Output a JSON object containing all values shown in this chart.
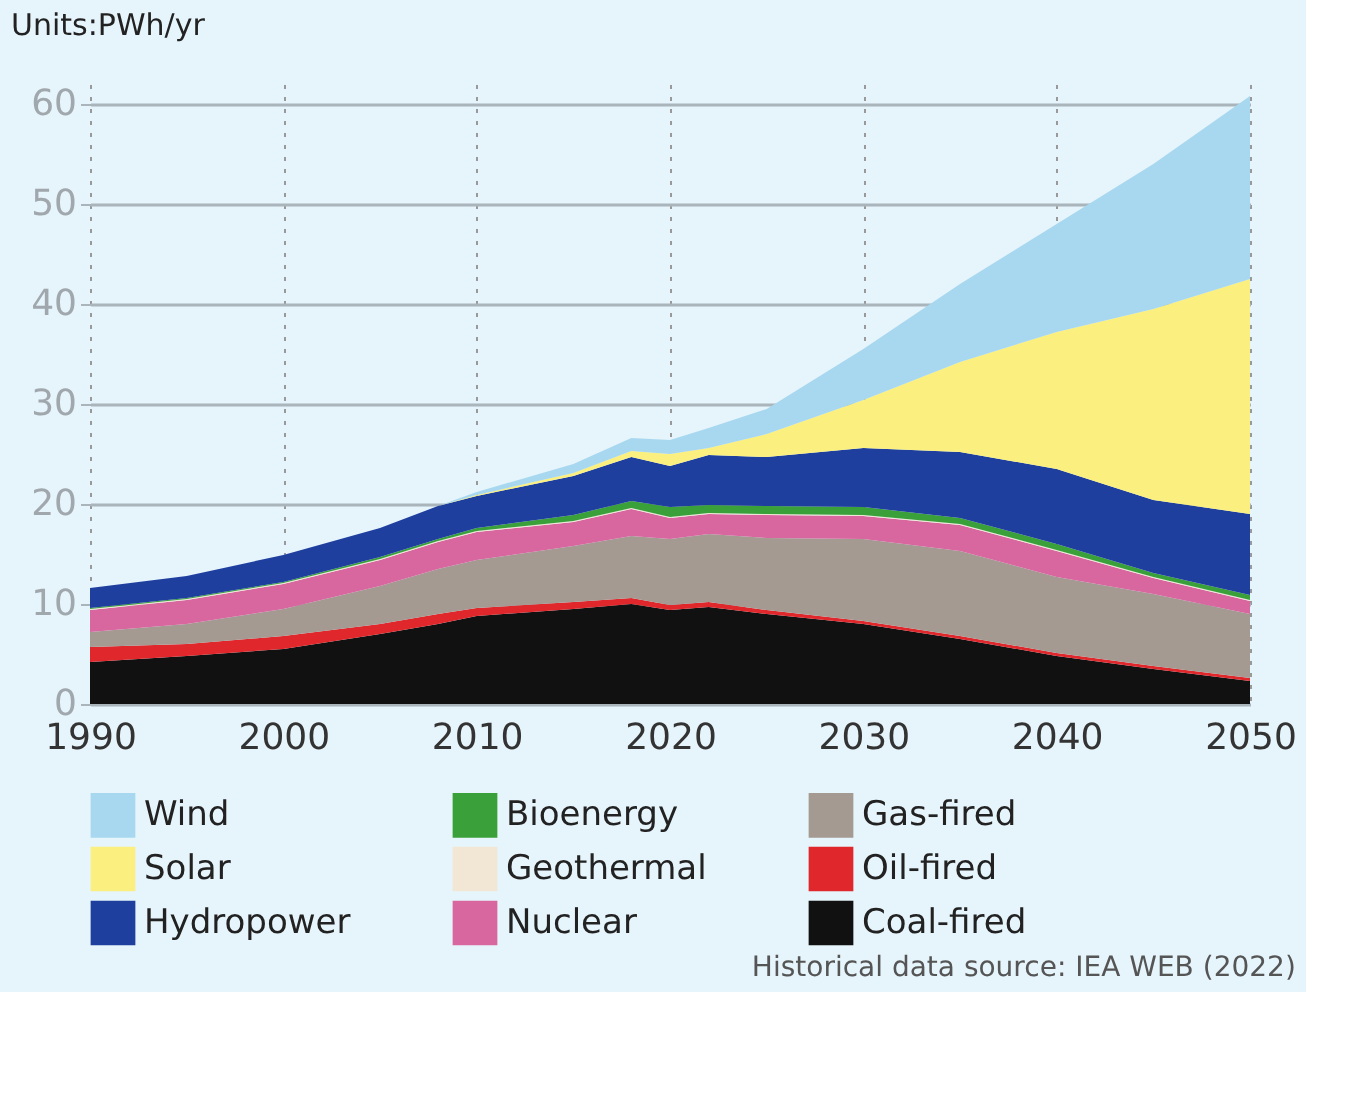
{
  "chart_data": {
    "type": "area",
    "stacked": true,
    "ylabel": "Units:PWh/yr",
    "x": [
      1990,
      1995,
      2000,
      2005,
      2008,
      2010,
      2015,
      2018,
      2020,
      2022,
      2025,
      2030,
      2035,
      2040,
      2045,
      2050
    ],
    "series": [
      {
        "name": "Coal-fired",
        "color": "#111111",
        "values": [
          4.2,
          4.8,
          5.5,
          7.0,
          8.0,
          8.8,
          9.5,
          10.0,
          9.4,
          9.7,
          9.0,
          8.0,
          6.5,
          4.8,
          3.5,
          2.3
        ]
      },
      {
        "name": "Oil-fired",
        "color": "#e0282c",
        "values": [
          1.5,
          1.2,
          1.3,
          1.0,
          1.0,
          0.8,
          0.7,
          0.6,
          0.5,
          0.5,
          0.4,
          0.3,
          0.3,
          0.3,
          0.3,
          0.3
        ]
      },
      {
        "name": "Gas-fired",
        "color": "#a59a92",
        "values": [
          1.5,
          2.0,
          2.7,
          3.8,
          4.5,
          4.8,
          5.6,
          6.2,
          6.6,
          6.8,
          7.2,
          8.2,
          8.5,
          7.6,
          7.2,
          6.4
        ]
      },
      {
        "name": "Nuclear",
        "color": "#d9679f",
        "values": [
          2.2,
          2.4,
          2.5,
          2.6,
          2.7,
          2.8,
          2.4,
          2.7,
          2.1,
          2.0,
          2.3,
          2.3,
          2.6,
          2.6,
          1.6,
          1.3
        ]
      },
      {
        "name": "Geothermal",
        "color": "#f2e6d4",
        "values": [
          0.1,
          0.1,
          0.1,
          0.1,
          0.1,
          0.1,
          0.1,
          0.1,
          0.1,
          0.1,
          0.1,
          0.1,
          0.1,
          0.1,
          0.1,
          0.1
        ]
      },
      {
        "name": "Bioenergy",
        "color": "#3aa03a",
        "values": [
          0.1,
          0.1,
          0.1,
          0.2,
          0.2,
          0.3,
          0.6,
          0.7,
          1.0,
          0.8,
          0.8,
          0.8,
          0.6,
          0.6,
          0.4,
          0.5
        ]
      },
      {
        "name": "Hydropower",
        "color": "#1f3f9f",
        "values": [
          2.0,
          2.2,
          2.7,
          2.9,
          3.3,
          3.2,
          3.9,
          4.4,
          4.1,
          5.0,
          4.9,
          5.9,
          6.6,
          7.5,
          7.3,
          8.1
        ]
      },
      {
        "name": "Solar",
        "color": "#fbef7f",
        "values": [
          0,
          0,
          0,
          0,
          0,
          0.1,
          0.3,
          0.6,
          1.2,
          0.7,
          2.3,
          4.8,
          9.0,
          13.7,
          19.1,
          23.5
        ]
      },
      {
        "name": "Wind",
        "color": "#a8d8ef",
        "values": [
          0,
          0,
          0,
          0,
          0,
          0.3,
          0.9,
          1.3,
          1.4,
          2.0,
          2.5,
          5.1,
          7.8,
          10.8,
          14.5,
          18.3
        ]
      }
    ],
    "xlim": [
      1990,
      2050
    ],
    "xticks": [
      1990,
      2000,
      2010,
      2020,
      2030,
      2040,
      2050
    ],
    "ylim": [
      0,
      62
    ],
    "yticks": [
      0,
      10,
      20,
      30,
      40,
      50,
      60
    ],
    "grid": true,
    "legend": "bottom",
    "annotations": [
      "Historical data source: IEA WEB (2022)"
    ]
  }
}
